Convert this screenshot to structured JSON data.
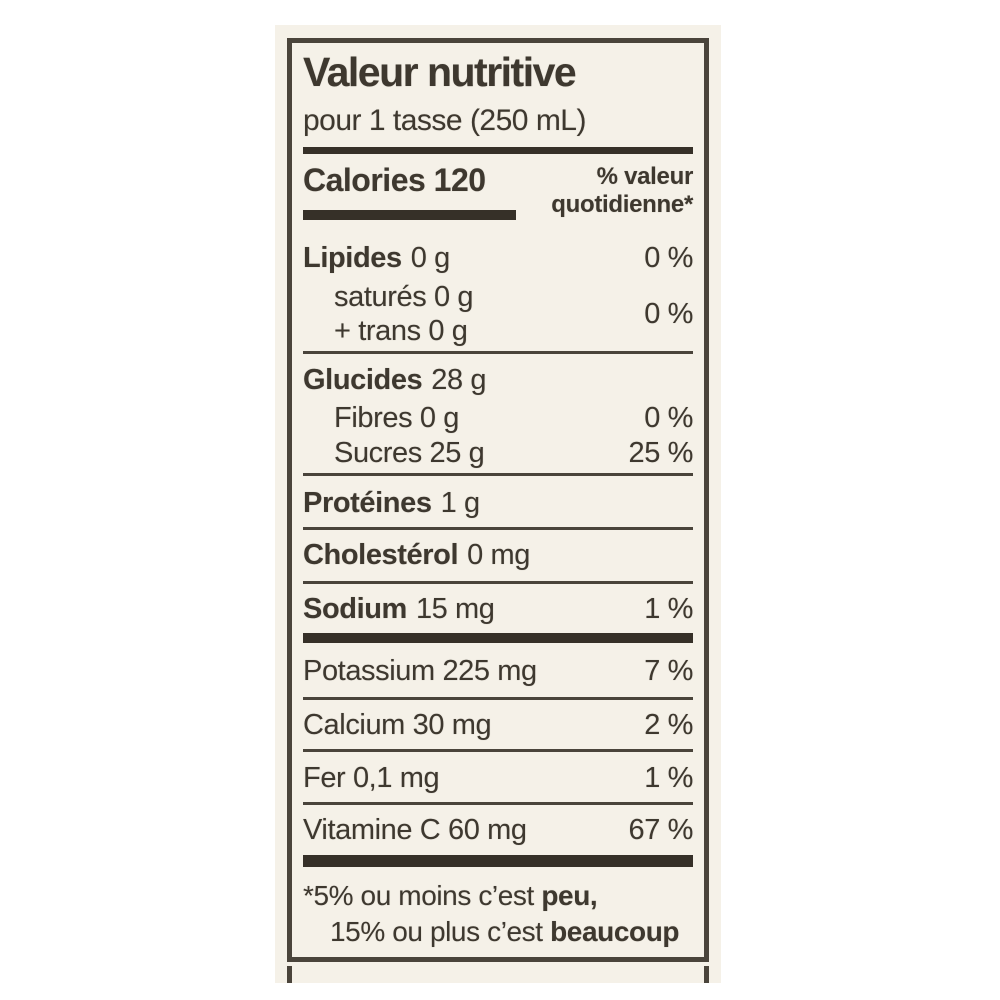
{
  "colors": {
    "background": "#ffffff",
    "paper": "#f5f1e8",
    "ink": "#3e382f",
    "bar": "#363028",
    "rule": "#4a443b"
  },
  "label": {
    "title": "Valeur nutritive",
    "serving": "pour 1 tasse (250 mL)",
    "calories_label": "Calories",
    "calories_value": "120",
    "dv_header": {
      "line1": "% valeur",
      "line2": "quotidienne*"
    },
    "fat": {
      "name": "Lipides",
      "amount": "0 g",
      "dv": "0 %"
    },
    "saturated": {
      "line1": "saturés 0 g",
      "line2": "+ trans 0 g",
      "dv": "0 %"
    },
    "carbs": {
      "name": "Glucides",
      "amount": "28 g"
    },
    "fibre": {
      "name": "Fibres 0 g",
      "dv": "0 %"
    },
    "sugars": {
      "name": "Sucres 25 g",
      "dv": "25 %"
    },
    "protein": {
      "name": "Protéines",
      "amount": "1 g"
    },
    "cholesterol": {
      "name": "Cholestérol",
      "amount": "0 mg"
    },
    "sodium": {
      "name": "Sodium",
      "amount": "15 mg",
      "dv": "1 %"
    },
    "potassium": {
      "name": "Potassium 225 mg",
      "dv": "7 %"
    },
    "calcium": {
      "name": "Calcium 30 mg",
      "dv": "2 %"
    },
    "iron": {
      "name": "Fer 0,1 mg",
      "dv": "1 %"
    },
    "vitamin_c": {
      "name": "Vitamine C 60 mg",
      "dv": "67 %"
    },
    "footnote": {
      "line1_text": "*5% ou moins c’est",
      "line1_bold": "peu,",
      "line2_text": "15% ou plus c’est",
      "line2_bold": "beaucoup"
    }
  }
}
